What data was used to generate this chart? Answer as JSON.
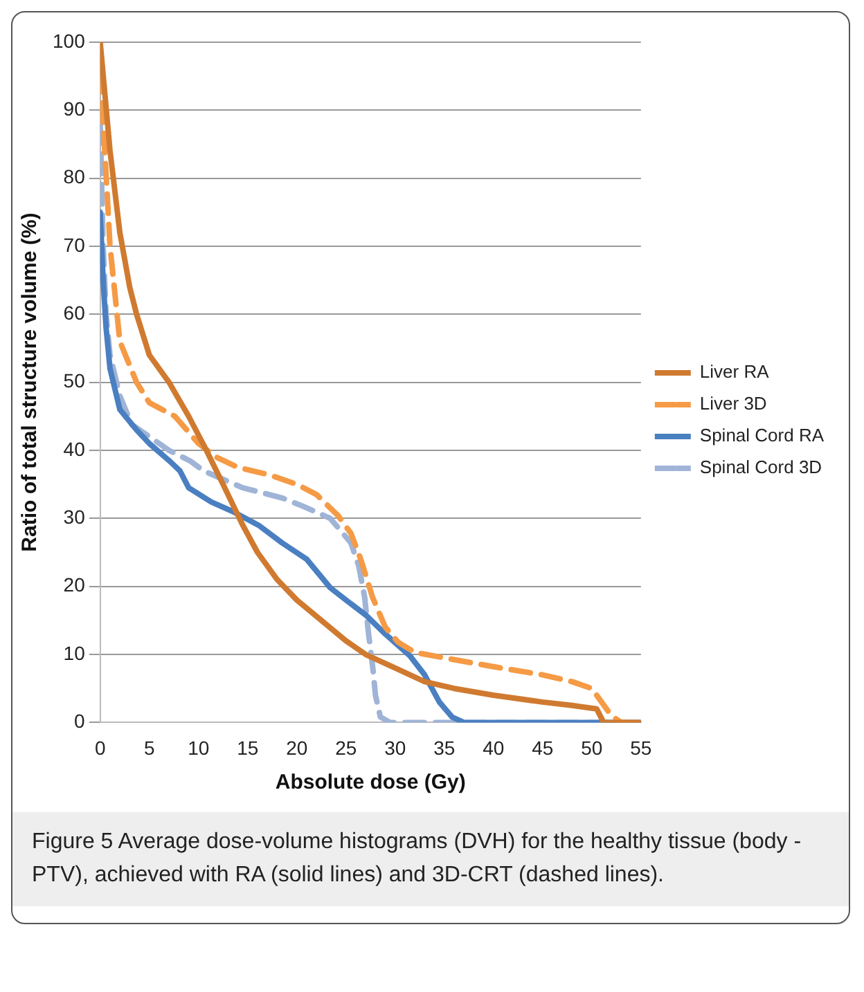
{
  "chart_data": {
    "type": "line",
    "xlabel": "Absolute dose (Gy)",
    "ylabel": "Ratio of total structure volume (%)",
    "xlim": [
      0,
      55
    ],
    "xticks": [
      0,
      5,
      10,
      15,
      20,
      25,
      30,
      35,
      40,
      45,
      50,
      55
    ],
    "ylim": [
      0,
      100
    ],
    "yticks": [
      0,
      10,
      20,
      30,
      40,
      50,
      60,
      70,
      80,
      90,
      100
    ],
    "grid": "y",
    "legend": "right",
    "marker": "none",
    "annotations": [
      "Figure 5 Average dose-volume histograms (DVH) for the healthy tissue (body -PTV), achieved with RA (solid lines) and 3D-CRT (dashed lines)."
    ],
    "series": [
      {
        "name": "Liver RA",
        "color": "#d07a30",
        "line_style": "solid",
        "x": [
          0,
          0.5,
          1,
          2,
          3,
          3.7,
          5,
          7,
          9,
          10.8,
          12.5,
          14.5,
          16,
          18,
          20,
          22.5,
          25,
          27,
          30,
          33,
          36,
          40,
          45,
          48,
          50.5,
          51.2,
          55
        ],
        "values": [
          100,
          92,
          84,
          72,
          64,
          60,
          54,
          50,
          45,
          40,
          35,
          29,
          25,
          21,
          18,
          15,
          12,
          10,
          8,
          6,
          5,
          4,
          3,
          2.5,
          2,
          0,
          0
        ]
      },
      {
        "name": "Liver 3D",
        "color": "#f59a45",
        "line_style": "dashed",
        "x": [
          0,
          0.3,
          0.7,
          1,
          2,
          3.7,
          5,
          7.6,
          10,
          11.8,
          14,
          17.2,
          20,
          22,
          24.2,
          25.5,
          26.5,
          27.7,
          29,
          30.3,
          32,
          35,
          40,
          45,
          48,
          50,
          51,
          52,
          53,
          55
        ],
        "values": [
          100,
          88,
          78,
          70,
          56,
          50,
          47,
          45,
          41,
          39,
          37.5,
          36.4,
          35,
          33.5,
          30.4,
          27.8,
          24,
          18.4,
          14,
          11.8,
          10.3,
          9.5,
          8.2,
          7,
          6,
          5,
          3,
          1,
          0,
          0
        ]
      },
      {
        "name": "Spinal Cord RA",
        "color": "#4a7fc1",
        "line_style": "solid",
        "x": [
          0,
          0.3,
          0.6,
          1,
          2,
          3.7,
          5,
          7,
          8.1,
          9,
          11.3,
          13.5,
          16.1,
          18.5,
          21,
          23.4,
          25,
          27,
          29,
          31.5,
          33,
          34.5,
          35.8,
          37,
          55
        ],
        "values": [
          75,
          65,
          58,
          52,
          46,
          43,
          41,
          38.5,
          37,
          34.5,
          32.4,
          31,
          29,
          26.4,
          24,
          19.8,
          18,
          15.8,
          13,
          9.8,
          7,
          3,
          0.8,
          0,
          0
        ]
      },
      {
        "name": "Spinal Cord 3D",
        "color": "#9fb4d6",
        "line_style": "dashed",
        "x": [
          0,
          0.3,
          0.6,
          1,
          2,
          3.2,
          5,
          7,
          9.2,
          10.5,
          12.4,
          14.5,
          16.4,
          18.5,
          20.6,
          23.4,
          25.5,
          26.3,
          26.9,
          27.3,
          27.7,
          28,
          28.5,
          29.5,
          55
        ],
        "values": [
          88,
          70,
          60,
          54,
          48,
          43.8,
          42,
          40,
          38.4,
          37,
          35.8,
          34.5,
          33.8,
          33,
          31.8,
          30,
          26.4,
          23,
          18.4,
          13,
          8.4,
          4,
          0.8,
          0,
          0
        ]
      }
    ]
  }
}
